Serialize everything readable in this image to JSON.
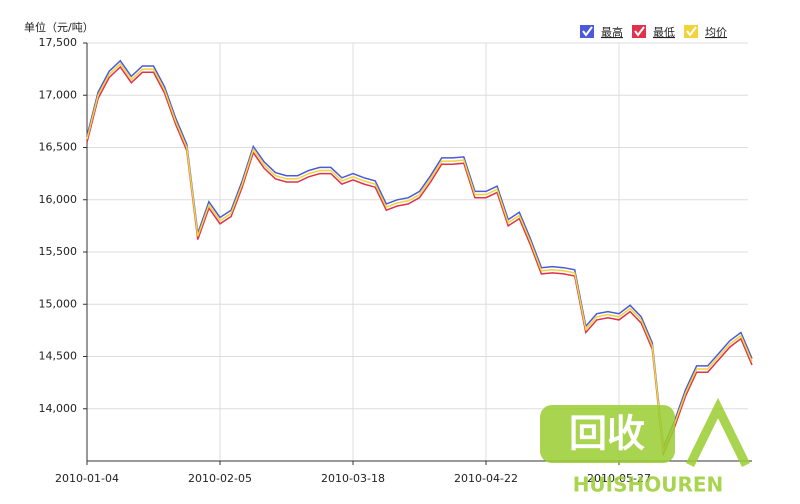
{
  "chart_data": {
    "type": "line",
    "y_axis_label": "单位（元/吨）",
    "categories": [
      "2010-01-04",
      null,
      null,
      null,
      null,
      null,
      null,
      null,
      null,
      null,
      null,
      null,
      "2010-02-05",
      null,
      null,
      null,
      null,
      null,
      null,
      null,
      null,
      null,
      null,
      null,
      "2010-03-18",
      null,
      null,
      null,
      null,
      null,
      null,
      null,
      null,
      null,
      null,
      null,
      "2010-04-22",
      null,
      null,
      null,
      null,
      null,
      null,
      null,
      null,
      null,
      null,
      null,
      "2010-05-27",
      null,
      null,
      null,
      null,
      null,
      null,
      null,
      null,
      null,
      null,
      null,
      null
    ],
    "series": [
      {
        "name": "最高",
        "color": "#4a5ad8",
        "values": [
          16610,
          17030,
          17230,
          17330,
          17180,
          17280,
          17280,
          17080,
          16780,
          16530,
          15680,
          15980,
          15830,
          15900,
          16180,
          16510,
          16360,
          16260,
          16230,
          16230,
          16280,
          16310,
          16310,
          16210,
          16250,
          16210,
          16180,
          15960,
          16000,
          16020,
          16080,
          16230,
          16400,
          16400,
          16410,
          16080,
          16080,
          16130,
          15810,
          15880,
          15630,
          15350,
          15360,
          15350,
          15330,
          14790,
          14910,
          14930,
          14910,
          14990,
          14880,
          14630,
          13630,
          13880,
          14180,
          14410,
          14410,
          14530,
          14650,
          14730,
          14480
        ]
      },
      {
        "name": "最低",
        "color": "#e0324a",
        "values": [
          16550,
          16970,
          17170,
          17270,
          17120,
          17220,
          17220,
          17020,
          16720,
          16470,
          15620,
          15920,
          15770,
          15840,
          16120,
          16450,
          16300,
          16200,
          16170,
          16170,
          16220,
          16250,
          16250,
          16150,
          16190,
          16150,
          16120,
          15900,
          15940,
          15960,
          16020,
          16170,
          16340,
          16340,
          16350,
          16020,
          16020,
          16070,
          15750,
          15820,
          15570,
          15290,
          15300,
          15290,
          15270,
          14730,
          14850,
          14870,
          14850,
          14930,
          14820,
          14570,
          13570,
          13820,
          14120,
          14350,
          14350,
          14470,
          14590,
          14670,
          14420
        ]
      },
      {
        "name": "均价",
        "color": "#f2d43a",
        "values": [
          16580,
          17000,
          17200,
          17300,
          17150,
          17250,
          17250,
          17050,
          16750,
          16500,
          15650,
          15950,
          15800,
          15870,
          16150,
          16480,
          16330,
          16230,
          16200,
          16200,
          16250,
          16280,
          16280,
          16180,
          16220,
          16180,
          16150,
          15930,
          15970,
          15990,
          16050,
          16200,
          16370,
          16370,
          16380,
          16050,
          16050,
          16100,
          15780,
          15850,
          15600,
          15320,
          15330,
          15320,
          15300,
          14760,
          14880,
          14900,
          14880,
          14960,
          14850,
          14600,
          13600,
          13850,
          14150,
          14380,
          14380,
          14500,
          14620,
          14700,
          14450
        ]
      }
    ],
    "ylim": [
      13500,
      17500
    ],
    "yticks": [
      {
        "value": 14000,
        "label": "14,000"
      },
      {
        "value": 14500,
        "label": "14,500"
      },
      {
        "value": 15000,
        "label": "15,000"
      },
      {
        "value": 15500,
        "label": "15,500"
      },
      {
        "value": 16000,
        "label": "16,000"
      },
      {
        "value": 16500,
        "label": "16,500"
      },
      {
        "value": 17000,
        "label": "17,000"
      },
      {
        "value": 17500,
        "label": "17,500"
      }
    ],
    "grid": true
  },
  "watermark": {
    "mark": "回收",
    "brand": "HUISHOUREN"
  }
}
